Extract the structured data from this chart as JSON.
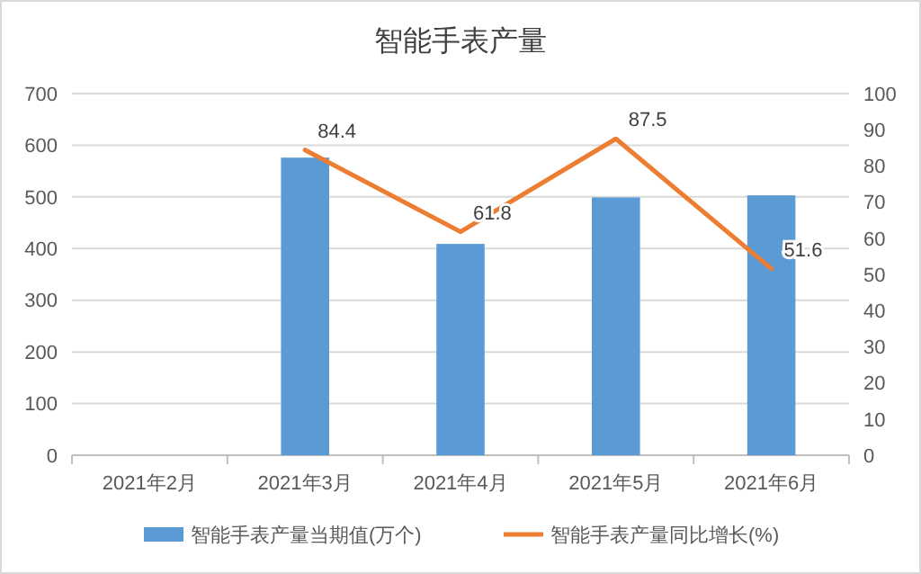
{
  "chart_data": {
    "type": "bar",
    "title": "智能手表产量",
    "categories": [
      "2021年2月",
      "2021年3月",
      "2021年4月",
      "2021年5月",
      "2021年6月"
    ],
    "series": [
      {
        "name": "智能手表产量当期值(万个)",
        "color": "#5b9bd5",
        "values": [
          null,
          576,
          409,
          499,
          503
        ]
      },
      {
        "name": "智能手表产量同比增长(%)",
        "type": "line",
        "axis": "y2",
        "color": "#ed7d31",
        "values": [
          null,
          84.4,
          61.8,
          87.5,
          51.6
        ],
        "value_labels": [
          null,
          "84.4",
          "61.8",
          "87.5",
          "51.6"
        ]
      }
    ],
    "ylim": [
      0,
      700
    ],
    "yticks": [
      0,
      100,
      200,
      300,
      400,
      500,
      600,
      700
    ],
    "y2lim": [
      0,
      100
    ],
    "y2ticks": [
      0,
      10,
      20,
      30,
      40,
      50,
      60,
      70,
      80,
      90,
      100
    ],
    "grid": "y",
    "legend": "bottom",
    "marker": "none"
  }
}
